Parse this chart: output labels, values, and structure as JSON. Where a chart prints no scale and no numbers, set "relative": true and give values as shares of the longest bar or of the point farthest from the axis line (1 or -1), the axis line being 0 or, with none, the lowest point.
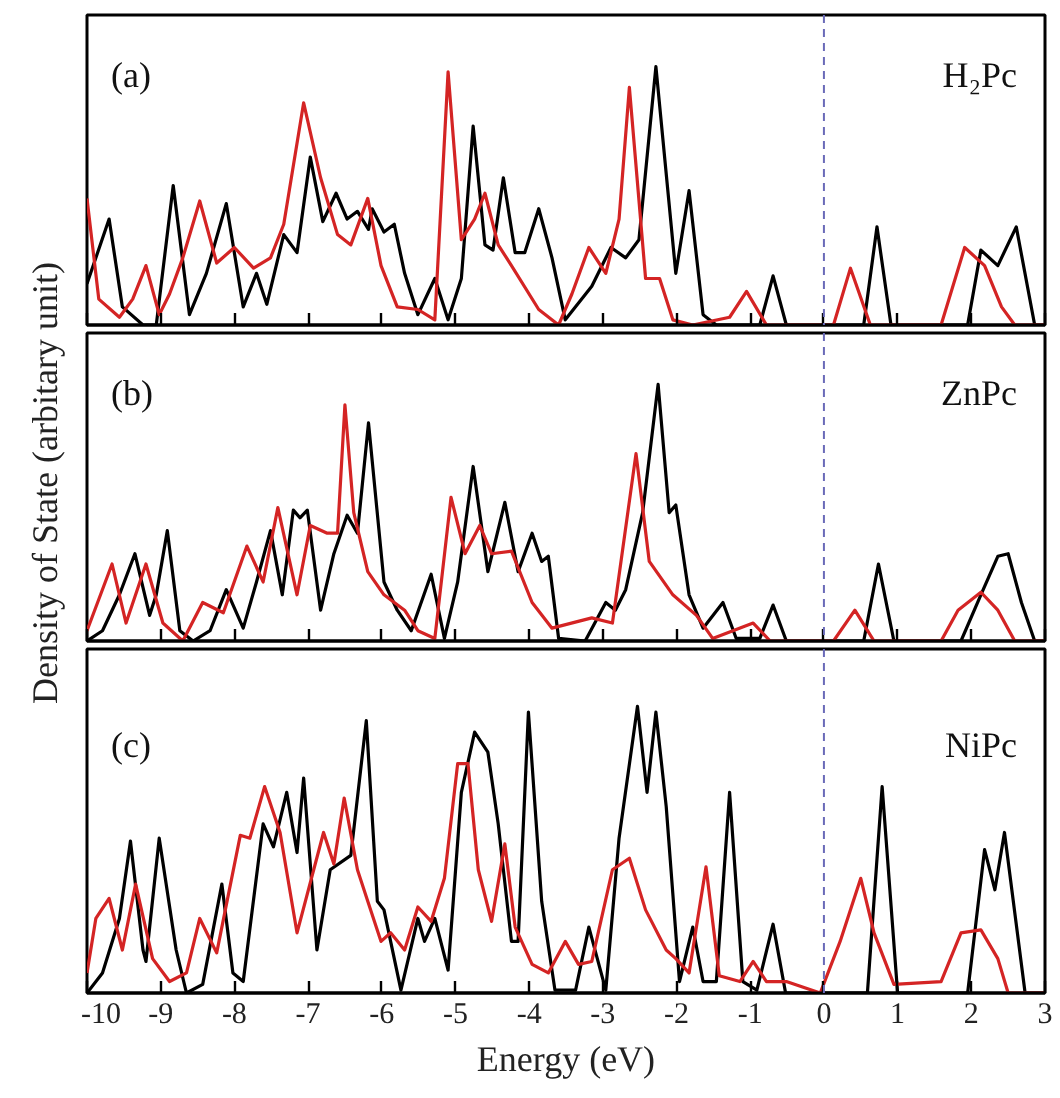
{
  "chart_data": [
    {
      "type": "line",
      "relative": true,
      "xlim": [
        -10,
        3
      ],
      "xticks": [
        -10,
        -9,
        -8,
        -7,
        -6,
        -5,
        -4,
        -3,
        -2,
        -1,
        0,
        1,
        2,
        3
      ],
      "tick_labels": false,
      "grid": false,
      "annotations": [
        "(a)",
        "H₂Pc"
      ],
      "ref_lines": [
        {
          "axis": "x",
          "value": 0,
          "color": "#6a6ab8",
          "line_style": "dashed"
        }
      ],
      "series": [
        {
          "color": "#000000",
          "x": [
            -10.0,
            -9.7,
            -9.52,
            -9.24,
            -9.06,
            -8.83,
            -8.61,
            -8.38,
            -8.11,
            -7.88,
            -7.7,
            -7.56,
            -7.33,
            -7.15,
            -6.97,
            -6.8,
            -6.62,
            -6.47,
            -6.33,
            -6.18,
            -6.13,
            -5.97,
            -5.83,
            -5.69,
            -5.51,
            -5.28,
            -5.1,
            -4.92,
            -4.76,
            -4.6,
            -4.49,
            -4.35,
            -4.19,
            -4.06,
            -3.87,
            -3.69,
            -3.51,
            -3.15,
            -2.89,
            -2.69,
            -2.51,
            -2.28,
            -2.01,
            -1.83,
            -1.64,
            -1.46,
            -0.87,
            -0.69,
            -0.51,
            0.54,
            0.72,
            0.91,
            1.95,
            2.13,
            2.36,
            2.61,
            2.86,
            3.0
          ],
          "values": [
            0.16,
            0.41,
            0.07,
            0,
            0,
            0.54,
            0.04,
            0.2,
            0.47,
            0.07,
            0.2,
            0.08,
            0.35,
            0.28,
            0.65,
            0.4,
            0.51,
            0.41,
            0.44,
            0.37,
            0.45,
            0.36,
            0.39,
            0.2,
            0.04,
            0.18,
            0.02,
            0.18,
            0.77,
            0.31,
            0.29,
            0.57,
            0.28,
            0.28,
            0.45,
            0.26,
            0.02,
            0.15,
            0.3,
            0.26,
            0.33,
            1.0,
            0.2,
            0.52,
            0.04,
            0,
            0,
            0.19,
            0,
            0,
            0.38,
            0,
            0,
            0.29,
            0.23,
            0.38,
            0,
            0
          ]
        },
        {
          "color": "#d42424",
          "x": [
            -10.0,
            -9.84,
            -9.56,
            -9.38,
            -9.2,
            -9.02,
            -8.88,
            -8.7,
            -8.47,
            -8.24,
            -8.0,
            -7.74,
            -7.51,
            -7.33,
            -7.06,
            -6.83,
            -6.6,
            -6.42,
            -6.19,
            -6.01,
            -5.79,
            -5.51,
            -5.28,
            -5.1,
            -4.92,
            -4.74,
            -4.6,
            -4.42,
            -4.24,
            -3.87,
            -3.6,
            -3.42,
            -3.19,
            -2.96,
            -2.78,
            -2.64,
            -2.42,
            -2.23,
            -2.05,
            -1.78,
            -1.28,
            -1.05,
            -0.78,
            0.13,
            0.36,
            0.63,
            1.59,
            1.91,
            2.18,
            2.41,
            2.59,
            3.0
          ],
          "values": [
            0.49,
            0.1,
            0.03,
            0.1,
            0.23,
            0.04,
            0.12,
            0.26,
            0.48,
            0.24,
            0.3,
            0.22,
            0.26,
            0.39,
            0.86,
            0.57,
            0.35,
            0.31,
            0.49,
            0.23,
            0.07,
            0.06,
            0.02,
            0.98,
            0.33,
            0.41,
            0.51,
            0.31,
            0.23,
            0.06,
            0,
            0.12,
            0.3,
            0.2,
            0.41,
            0.92,
            0.18,
            0.18,
            0.02,
            0,
            0.03,
            0.13,
            0,
            0,
            0.22,
            0,
            0,
            0.3,
            0.23,
            0.07,
            0,
            0
          ]
        }
      ]
    },
    {
      "type": "line",
      "relative": true,
      "xlim": [
        -10,
        3
      ],
      "xticks": [
        -10,
        -9,
        -8,
        -7,
        -6,
        -5,
        -4,
        -3,
        -2,
        -1,
        0,
        1,
        2,
        3
      ],
      "tick_labels": false,
      "grid": false,
      "ylabel": "Density of State (arbitary unit)",
      "annotations": [
        "(b)",
        "ZnPc"
      ],
      "ref_lines": [
        {
          "axis": "x",
          "value": 0,
          "color": "#6a6ab8",
          "line_style": "dashed"
        }
      ],
      "series": [
        {
          "color": "#000000",
          "x": [
            -10.0,
            -9.79,
            -9.56,
            -9.35,
            -9.15,
            -9.06,
            -8.91,
            -8.74,
            -8.56,
            -8.33,
            -8.11,
            -7.88,
            -7.7,
            -7.51,
            -7.35,
            -7.2,
            -7.11,
            -7.01,
            -6.83,
            -6.65,
            -6.47,
            -6.33,
            -6.18,
            -5.97,
            -5.79,
            -5.6,
            -5.33,
            -5.15,
            -4.97,
            -4.76,
            -4.56,
            -4.33,
            -4.15,
            -3.96,
            -3.83,
            -3.74,
            -3.6,
            -3.24,
            -2.96,
            -2.83,
            -2.69,
            -2.46,
            -2.25,
            -2.1,
            -2.01,
            -1.83,
            -1.64,
            -1.37,
            -1.19,
            -0.87,
            -0.69,
            -0.51,
            0.54,
            0.74,
            0.95,
            1.86,
            2.13,
            2.36,
            2.5,
            2.68,
            2.86,
            3.0
          ],
          "values": [
            0,
            0.04,
            0.18,
            0.34,
            0.1,
            0.18,
            0.43,
            0.04,
            0,
            0.04,
            0.2,
            0.05,
            0.23,
            0.43,
            0.18,
            0.51,
            0.48,
            0.51,
            0.12,
            0.34,
            0.49,
            0.42,
            0.85,
            0.23,
            0.12,
            0.04,
            0.26,
            0.01,
            0.23,
            0.68,
            0.27,
            0.54,
            0.27,
            0.42,
            0.31,
            0.33,
            0.01,
            0,
            0.15,
            0.12,
            0.2,
            0.5,
            1.0,
            0.5,
            0.53,
            0.18,
            0.05,
            0.15,
            0.01,
            0.01,
            0.14,
            0,
            0,
            0.3,
            0,
            0,
            0.18,
            0.33,
            0.34,
            0.15,
            0,
            0
          ]
        },
        {
          "color": "#d42424",
          "x": [
            -10.0,
            -9.66,
            -9.47,
            -9.2,
            -8.97,
            -8.7,
            -8.43,
            -8.15,
            -7.83,
            -7.61,
            -7.41,
            -7.15,
            -6.97,
            -6.74,
            -6.6,
            -6.5,
            -6.38,
            -6.19,
            -5.97,
            -5.69,
            -5.51,
            -5.28,
            -5.06,
            -4.87,
            -4.67,
            -4.51,
            -4.24,
            -3.96,
            -3.69,
            -3.15,
            -2.87,
            -2.55,
            -2.37,
            -2.05,
            -1.73,
            -1.51,
            -0.96,
            -0.73,
            0.13,
            0.42,
            0.68,
            1.59,
            1.82,
            2.13,
            2.36,
            2.59,
            3.0
          ],
          "values": [
            0.04,
            0.3,
            0.07,
            0.3,
            0.07,
            0,
            0.15,
            0.11,
            0.37,
            0.23,
            0.52,
            0.18,
            0.45,
            0.42,
            0.42,
            0.92,
            0.5,
            0.27,
            0.18,
            0.12,
            0.04,
            0.01,
            0.56,
            0.34,
            0.45,
            0.34,
            0.35,
            0.15,
            0.05,
            0.09,
            0.07,
            0.73,
            0.31,
            0.18,
            0.1,
            0.01,
            0.07,
            0,
            0,
            0.12,
            0,
            0,
            0.12,
            0.19,
            0.12,
            0,
            0
          ]
        }
      ]
    },
    {
      "type": "line",
      "relative": true,
      "xlim": [
        -10,
        3
      ],
      "xticks": [
        -10,
        -9,
        -8,
        -7,
        -6,
        -5,
        -4,
        -3,
        -2,
        -1,
        0,
        1,
        2,
        3
      ],
      "tick_labels": "x",
      "grid": false,
      "xlabel": "Energy (eV)",
      "annotations": [
        "(c)",
        "NiPc"
      ],
      "ref_lines": [
        {
          "axis": "x",
          "value": 0,
          "color": "#6a6ab8",
          "line_style": "dashed"
        }
      ],
      "series": [
        {
          "color": "#000000",
          "x": [
            -10.0,
            -9.79,
            -9.56,
            -9.41,
            -9.24,
            -9.2,
            -9.02,
            -8.79,
            -8.65,
            -8.43,
            -8.17,
            -8.02,
            -7.88,
            -7.61,
            -7.47,
            -7.29,
            -7.15,
            -7.06,
            -6.88,
            -6.7,
            -6.42,
            -6.21,
            -6.06,
            -5.97,
            -5.74,
            -5.51,
            -5.42,
            -5.28,
            -5.1,
            -4.92,
            -4.74,
            -4.56,
            -4.42,
            -4.24,
            -4.15,
            -4.01,
            -3.83,
            -3.65,
            -3.37,
            -3.19,
            -2.96,
            -2.78,
            -2.53,
            -2.4,
            -2.28,
            -2.14,
            -1.96,
            -1.78,
            -1.64,
            -1.46,
            -1.28,
            -1.1,
            -0.91,
            -0.69,
            -0.52,
            0.59,
            0.79,
            1.0,
            1.95,
            2.18,
            2.32,
            2.45,
            2.73,
            3.0
          ],
          "values": [
            0,
            0.07,
            0.26,
            0.53,
            0.15,
            0.11,
            0.54,
            0.15,
            0,
            0.03,
            0.38,
            0.07,
            0.04,
            0.59,
            0.51,
            0.7,
            0.49,
            0.75,
            0.15,
            0.43,
            0.48,
            0.95,
            0.32,
            0.29,
            0.01,
            0.26,
            0.18,
            0.26,
            0.08,
            0.7,
            0.91,
            0.84,
            0.59,
            0.18,
            0.18,
            0.98,
            0.32,
            0.01,
            0.01,
            0.23,
            0.01,
            0.54,
            1.0,
            0.7,
            0.98,
            0.65,
            0.04,
            0.23,
            0.04,
            0.04,
            0.7,
            0.04,
            0.01,
            0.24,
            0,
            0,
            0.72,
            0,
            0,
            0.5,
            0.36,
            0.56,
            0,
            0
          ]
        },
        {
          "color": "#d42424",
          "x": [
            -10.0,
            -9.88,
            -9.7,
            -9.52,
            -9.34,
            -9.11,
            -8.88,
            -8.65,
            -8.47,
            -8.24,
            -7.92,
            -7.79,
            -7.59,
            -7.38,
            -7.15,
            -6.79,
            -6.65,
            -6.51,
            -6.33,
            -6.19,
            -6.01,
            -5.88,
            -5.69,
            -5.51,
            -5.33,
            -5.15,
            -4.97,
            -4.83,
            -4.69,
            -4.51,
            -4.33,
            -4.19,
            -3.96,
            -3.74,
            -3.51,
            -3.33,
            -3.15,
            -2.87,
            -2.64,
            -2.42,
            -2.14,
            -2.01,
            -1.83,
            -1.6,
            -1.42,
            -1.14,
            -0.96,
            -0.78,
            -0.51,
            -0.05,
            0.22,
            0.5,
            0.68,
            0.95,
            1.59,
            1.86,
            2.13,
            2.36,
            2.5,
            3.0
          ],
          "values": [
            0.07,
            0.26,
            0.33,
            0.15,
            0.38,
            0.12,
            0.04,
            0.07,
            0.26,
            0.14,
            0.55,
            0.54,
            0.72,
            0.56,
            0.21,
            0.56,
            0.45,
            0.68,
            0.43,
            0.32,
            0.18,
            0.21,
            0.15,
            0.3,
            0.25,
            0.4,
            0.8,
            0.8,
            0.43,
            0.25,
            0.52,
            0.23,
            0.1,
            0.07,
            0.18,
            0.1,
            0.11,
            0.43,
            0.47,
            0.29,
            0.15,
            0.12,
            0.07,
            0.44,
            0.06,
            0.04,
            0.11,
            0.04,
            0.04,
            0,
            0.18,
            0.4,
            0.21,
            0.03,
            0.04,
            0.21,
            0.22,
            0.12,
            0,
            0
          ]
        }
      ]
    }
  ]
}
